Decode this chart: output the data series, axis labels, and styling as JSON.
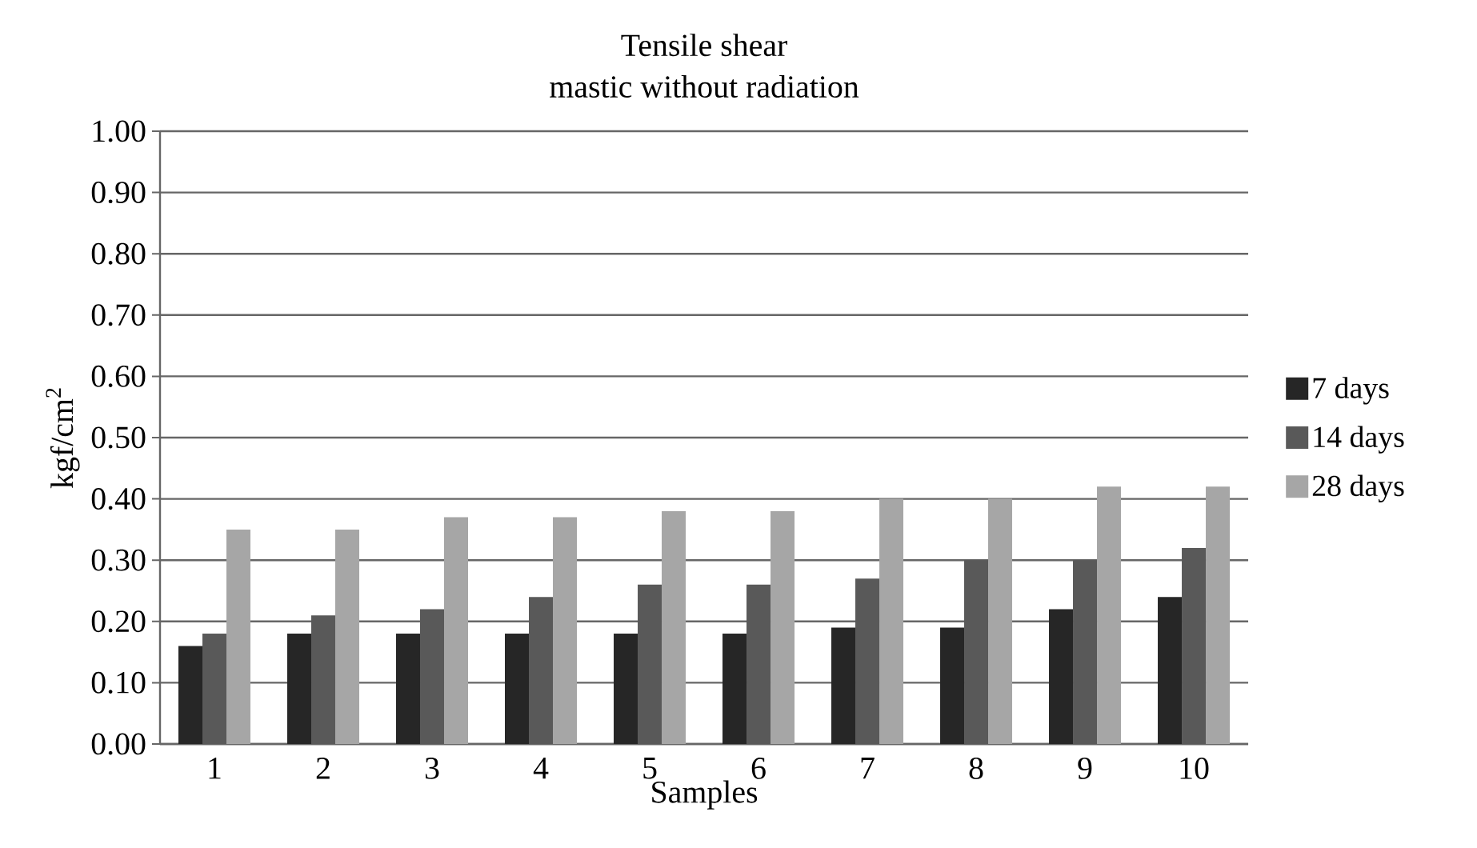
{
  "chart_data": {
    "type": "bar",
    "title": "Tensile shear",
    "subtitle": "mastic without radiation",
    "xlabel": "Samples",
    "ylabel": "kgf/cm$^{2}$",
    "categories": [
      "1",
      "2",
      "3",
      "4",
      "5",
      "6",
      "7",
      "8",
      "9",
      "10"
    ],
    "series": [
      {
        "name": "7 days",
        "color": "#262626",
        "values": [
          0.16,
          0.18,
          0.18,
          0.18,
          0.18,
          0.18,
          0.19,
          0.19,
          0.22,
          0.24
        ]
      },
      {
        "name": "14 days",
        "color": "#595959",
        "values": [
          0.18,
          0.21,
          0.22,
          0.24,
          0.26,
          0.26,
          0.27,
          0.3,
          0.3,
          0.32
        ]
      },
      {
        "name": "28 days",
        "color": "#a6a6a6",
        "values": [
          0.35,
          0.35,
          0.37,
          0.37,
          0.38,
          0.38,
          0.4,
          0.4,
          0.42,
          0.42
        ]
      }
    ],
    "ylim": [
      0,
      1
    ],
    "yticks": [
      {
        "value": 0,
        "label": "0.00"
      },
      {
        "value": 0.1,
        "label": "0.10"
      },
      {
        "value": 0.2,
        "label": "0.20"
      },
      {
        "value": 0.3,
        "label": "0.30"
      },
      {
        "value": 0.4,
        "label": "0.40"
      },
      {
        "value": 0.5,
        "label": "0.50"
      },
      {
        "value": 0.6,
        "label": "0.60"
      },
      {
        "value": 0.7,
        "label": "0.70"
      },
      {
        "value": 0.8,
        "label": "0.80"
      },
      {
        "value": 0.9,
        "label": "0.90"
      },
      {
        "value": 1,
        "label": "1.00"
      }
    ],
    "grid": "y",
    "legend": "right"
  }
}
